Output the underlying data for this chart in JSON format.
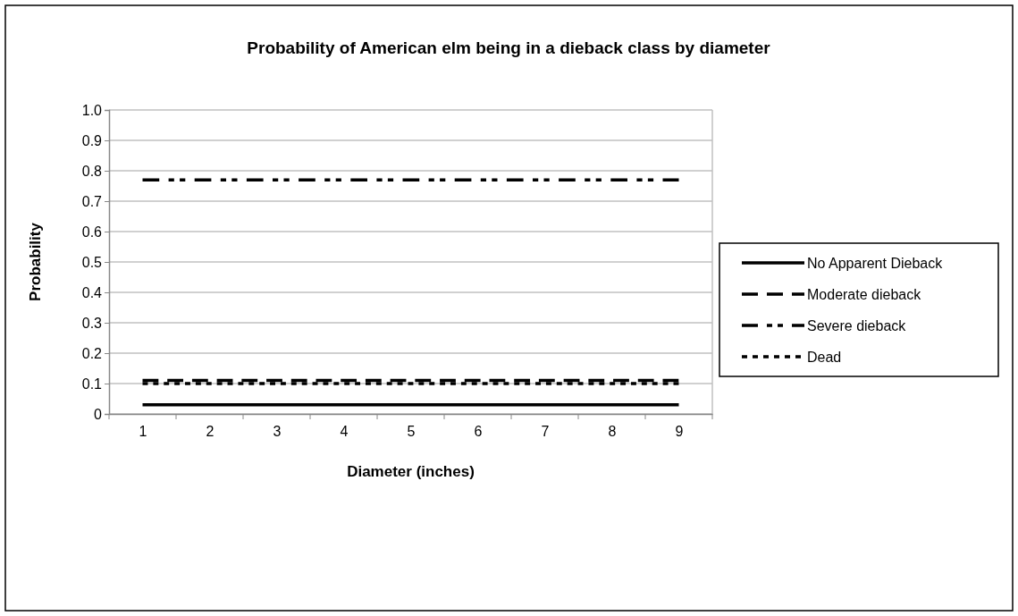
{
  "chart_data": {
    "type": "line",
    "title": "Probability of American elm being in a dieback class by diameter",
    "xlabel": "Diameter (inches)",
    "ylabel": "Probability",
    "categories": [
      "1",
      "2",
      "3",
      "4",
      "5",
      "6",
      "7",
      "8",
      "9"
    ],
    "series": [
      {
        "name": "No Apparent Dieback",
        "color": "#000000",
        "line_style": "solid",
        "values": [
          0.03,
          0.03,
          0.03,
          0.03,
          0.03,
          0.03,
          0.03,
          0.03,
          0.03
        ]
      },
      {
        "name": "Moderate dieback",
        "color": "#000000",
        "line_style": "dashed",
        "values": [
          0.11,
          0.11,
          0.11,
          0.11,
          0.11,
          0.11,
          0.11,
          0.11,
          0.11
        ]
      },
      {
        "name": "Severe dieback",
        "color": "#000000",
        "line_style": "dashdot",
        "values": [
          0.77,
          0.77,
          0.77,
          0.77,
          0.77,
          0.77,
          0.77,
          0.77,
          0.77
        ]
      },
      {
        "name": "Dead",
        "color": "#000000",
        "line_style": "dotted",
        "values": [
          0.1,
          0.1,
          0.1,
          0.1,
          0.1,
          0.1,
          0.1,
          0.1,
          0.1
        ]
      }
    ],
    "ylim": [
      0,
      1
    ],
    "yticks": [
      0,
      {
        "value": 0.1,
        "label": "0.1"
      },
      {
        "value": 0.2,
        "label": "0.2"
      },
      {
        "value": 0.3,
        "label": "0.3"
      },
      {
        "value": 0.4,
        "label": "0.4"
      },
      {
        "value": 0.5,
        "label": "0.5"
      },
      {
        "value": 0.6,
        "label": "0.6"
      },
      {
        "value": 0.7,
        "label": "0.7"
      },
      {
        "value": 0.8,
        "label": "0.8"
      },
      {
        "value": 0.9,
        "label": "0.9"
      },
      {
        "value": 1,
        "label": "1.0"
      }
    ],
    "grid": "y",
    "legend": "right",
    "marker": "none"
  }
}
